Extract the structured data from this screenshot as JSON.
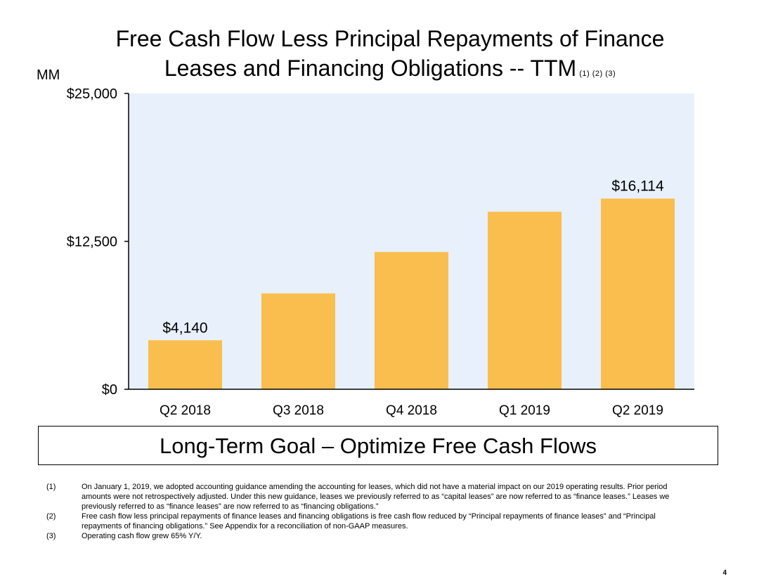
{
  "title": {
    "line1": "Free Cash Flow Less Principal Repayments of Finance",
    "line2": "Leases and Financing Obligations -- TTM",
    "footnote_refs": "(1) (2) (3)"
  },
  "unit_label": "MM",
  "chart_data": {
    "type": "bar",
    "title": "Free Cash Flow Less Principal Repayments of Finance Leases and Financing Obligations -- TTM",
    "xlabel": "",
    "ylabel": "MM",
    "categories": [
      "Q2 2018",
      "Q3 2018",
      "Q4 2018",
      "Q1 2019",
      "Q2 2019"
    ],
    "values": [
      4140,
      8100,
      11600,
      15000,
      16114
    ],
    "data_labels": [
      "$4,140",
      "",
      "",
      "",
      "$16,114"
    ],
    "ylim": [
      0,
      25000
    ],
    "yticks": [
      0,
      12500,
      25000
    ],
    "ytick_labels": [
      "$0",
      "$12,500",
      "$25,000"
    ],
    "grid": false,
    "colors": {
      "bar": "#F9BE4D",
      "plot_background": "#E8F0FB",
      "axis": "#000000"
    }
  },
  "goal_text": "Long-Term Goal – Optimize Free Cash Flows",
  "footnotes": [
    {
      "num": "(1)",
      "text": "On January 1, 2019, we adopted accounting guidance amending the accounting for leases, which did not have a material impact on our 2019 operating results. Prior period amounts were not retrospectively adjusted. Under this new guidance, leases we previously referred to as “capital leases” are now referred to as “finance leases.” Leases we previously referred to as “finance leases” are now referred to as “financing obligations.”"
    },
    {
      "num": "(2)",
      "text": "Free cash flow less principal repayments of finance leases and financing obligations is free cash flow reduced by “Principal repayments of finance leases” and “Principal repayments of financing obligations.” See Appendix for a reconciliation of non-GAAP measures."
    },
    {
      "num": "(3)",
      "text": "Operating cash flow grew 65% Y/Y."
    }
  ],
  "page_number": "4"
}
